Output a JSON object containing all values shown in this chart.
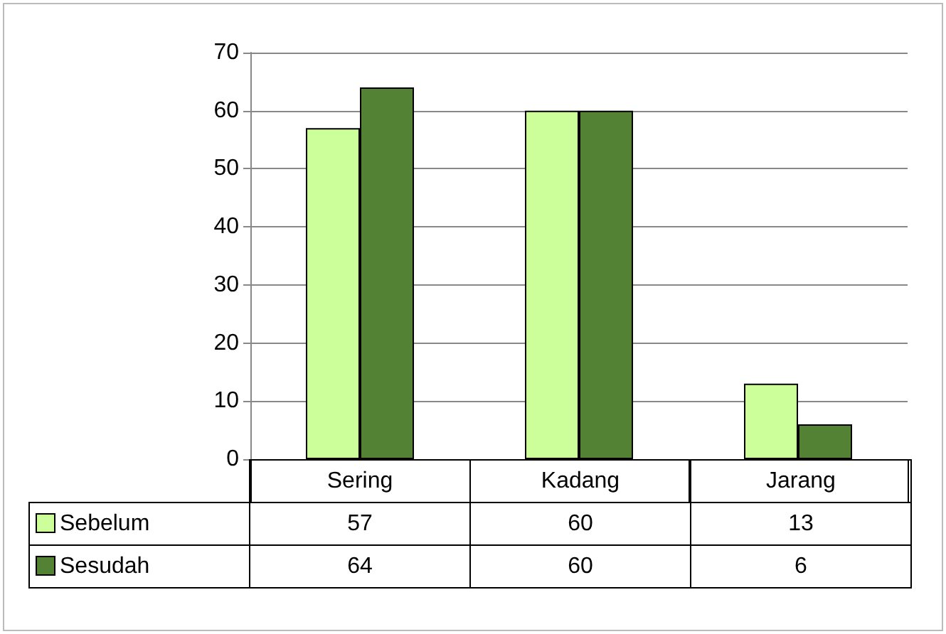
{
  "chart_data": {
    "type": "bar",
    "categories": [
      "Sering",
      "Kadang",
      "Jarang"
    ],
    "series": [
      {
        "name": "Sebelum",
        "color": "#ccff99",
        "values": [
          57,
          60,
          13
        ]
      },
      {
        "name": "Sesudah",
        "color": "#548235",
        "values": [
          64,
          60,
          6
        ]
      }
    ],
    "ylim": [
      0,
      70
    ],
    "yticks": [
      0,
      10,
      20,
      30,
      40,
      50,
      60,
      70
    ],
    "grid": "y",
    "legend": "bottom",
    "data_labels": true
  }
}
